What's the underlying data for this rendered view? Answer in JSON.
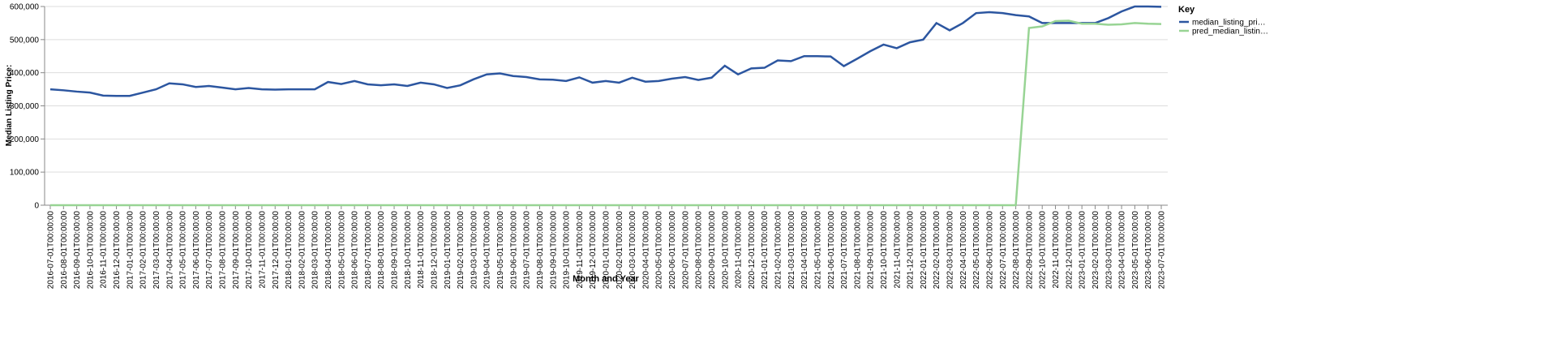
{
  "chart_data": {
    "type": "line",
    "x_label": "Month and Year",
    "y_label": "Median Listing Price:",
    "legend_title": "Key",
    "legend_position": "right",
    "grid": true,
    "categories": [
      "2016-07-01T00:00:00",
      "2016-08-01T00:00:00",
      "2016-09-01T00:00:00",
      "2016-10-01T00:00:00",
      "2016-11-01T00:00:00",
      "2016-12-01T00:00:00",
      "2017-01-01T00:00:00",
      "2017-02-01T00:00:00",
      "2017-03-01T00:00:00",
      "2017-04-01T00:00:00",
      "2017-05-01T00:00:00",
      "2017-06-01T00:00:00",
      "2017-07-01T00:00:00",
      "2017-08-01T00:00:00",
      "2017-09-01T00:00:00",
      "2017-10-01T00:00:00",
      "2017-11-01T00:00:00",
      "2017-12-01T00:00:00",
      "2018-01-01T00:00:00",
      "2018-02-01T00:00:00",
      "2018-03-01T00:00:00",
      "2018-04-01T00:00:00",
      "2018-05-01T00:00:00",
      "2018-06-01T00:00:00",
      "2018-07-01T00:00:00",
      "2018-08-01T00:00:00",
      "2018-09-01T00:00:00",
      "2018-10-01T00:00:00",
      "2018-11-01T00:00:00",
      "2018-12-01T00:00:00",
      "2019-01-01T00:00:00",
      "2019-02-01T00:00:00",
      "2019-03-01T00:00:00",
      "2019-04-01T00:00:00",
      "2019-05-01T00:00:00",
      "2019-06-01T00:00:00",
      "2019-07-01T00:00:00",
      "2019-08-01T00:00:00",
      "2019-09-01T00:00:00",
      "2019-10-01T00:00:00",
      "2019-11-01T00:00:00",
      "2019-12-01T00:00:00",
      "2020-01-01T00:00:00",
      "2020-02-01T00:00:00",
      "2020-03-01T00:00:00",
      "2020-04-01T00:00:00",
      "2020-05-01T00:00:00",
      "2020-06-01T00:00:00",
      "2020-07-01T00:00:00",
      "2020-08-01T00:00:00",
      "2020-09-01T00:00:00",
      "2020-10-01T00:00:00",
      "2020-11-01T00:00:00",
      "2020-12-01T00:00:00",
      "2021-01-01T00:00:00",
      "2021-02-01T00:00:00",
      "2021-03-01T00:00:00",
      "2021-04-01T00:00:00",
      "2021-05-01T00:00:00",
      "2021-06-01T00:00:00",
      "2021-07-01T00:00:00",
      "2021-08-01T00:00:00",
      "2021-09-01T00:00:00",
      "2021-10-01T00:00:00",
      "2021-11-01T00:00:00",
      "2021-12-01T00:00:00",
      "2022-01-01T00:00:00",
      "2022-02-01T00:00:00",
      "2022-03-01T00:00:00",
      "2022-04-01T00:00:00",
      "2022-05-01T00:00:00",
      "2022-06-01T00:00:00",
      "2022-07-01T00:00:00",
      "2022-08-01T00:00:00",
      "2022-09-01T00:00:00",
      "2022-10-01T00:00:00",
      "2022-11-01T00:00:00",
      "2022-12-01T00:00:00",
      "2023-01-01T00:00:00",
      "2023-02-01T00:00:00",
      "2023-03-01T00:00:00",
      "2023-04-01T00:00:00",
      "2023-05-01T00:00:00",
      "2023-06-01T00:00:00",
      "2023-07-01T00:00:00"
    ],
    "series": [
      {
        "name": "median_listing_pri…",
        "color": "#2c56a0",
        "values": [
          350000,
          347000,
          343000,
          340000,
          331000,
          330000,
          330000,
          340000,
          350000,
          368000,
          365000,
          357000,
          360000,
          355000,
          350000,
          354000,
          350000,
          349000,
          350000,
          350000,
          350000,
          372000,
          366000,
          375000,
          365000,
          362000,
          365000,
          360000,
          370000,
          365000,
          354000,
          362000,
          380000,
          395000,
          398000,
          390000,
          387000,
          380000,
          379000,
          375000,
          386000,
          370000,
          375000,
          370000,
          385000,
          373000,
          375000,
          382000,
          387000,
          378000,
          385000,
          421000,
          395000,
          413000,
          415000,
          437000,
          435000,
          450000,
          450000,
          449000,
          420000,
          442000,
          465000,
          485000,
          474000,
          492000,
          500000,
          550000,
          528000,
          550000,
          580000,
          583000,
          580000,
          574000,
          570000,
          550000,
          550000,
          550000,
          550000,
          550000,
          565000,
          585000,
          600000,
          600000,
          599000
        ]
      },
      {
        "name": "pred_median_listin…",
        "color": "#98d494",
        "values": [
          0,
          0,
          0,
          0,
          0,
          0,
          0,
          0,
          0,
          0,
          0,
          0,
          0,
          0,
          0,
          0,
          0,
          0,
          0,
          0,
          0,
          0,
          0,
          0,
          0,
          0,
          0,
          0,
          0,
          0,
          0,
          0,
          0,
          0,
          0,
          0,
          0,
          0,
          0,
          0,
          0,
          0,
          0,
          0,
          0,
          0,
          0,
          0,
          0,
          0,
          0,
          0,
          0,
          0,
          0,
          0,
          0,
          0,
          0,
          0,
          0,
          0,
          0,
          0,
          0,
          0,
          0,
          0,
          0,
          0,
          0,
          0,
          0,
          0,
          535000,
          540000,
          556000,
          557000,
          548000,
          548000,
          545000,
          546000,
          550000,
          548000,
          547000
        ]
      }
    ],
    "ylim": [
      0,
      600000
    ],
    "yticks": [
      0,
      {
        "value": 100000,
        "label": "100,000"
      },
      {
        "value": 200000,
        "label": "200,000"
      },
      {
        "value": 300000,
        "label": "300,000"
      },
      {
        "value": 400000,
        "label": "400,000"
      },
      {
        "value": 500000,
        "label": "500,000"
      },
      {
        "value": 600000,
        "label": "600,000"
      }
    ]
  }
}
